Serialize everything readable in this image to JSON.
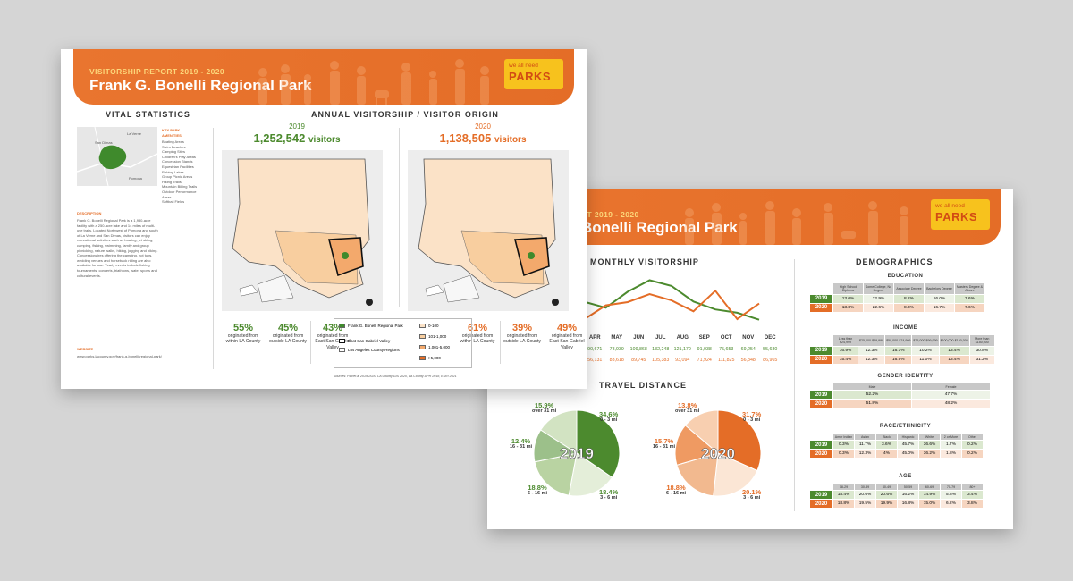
{
  "front": {
    "banner_sub": "VISITORSHIP REPORT 2019 - 2020",
    "banner_title": "Frank G. Bonelli Regional Park",
    "logo_line1": "we all need",
    "logo_line2": "PARKS",
    "vital_heading": "VITAL STATISTICS",
    "annual_heading": "ANNUAL VISITORSHIP / VISITOR ORIGIN",
    "mini_map_labels": [
      "La Verne",
      "San Dimas",
      "Pomona"
    ],
    "amenities_heading": "KEY PARK AMENITIES",
    "amenities": [
      "Boating Areas",
      "Swim Beaches",
      "Camping Sites",
      "Children's Play Areas",
      "Concession Stands",
      "Equestrian Facilities",
      "Fishing Lakes",
      "Group Picnic Areas",
      "Hiking Trails",
      "Mountain Biking Trails",
      "Outdoor Performance Areas",
      "Softball Fields"
    ],
    "description_heading": "DESCRIPTION",
    "description": "Frank G. Bonelli Regional Park is a 1,980-acre facility with a 250-acre lake and 14 miles of multi-use trails. Located Northwest of Pomona and south of La Verne and San Dimas, visitors can enjoy recreational activities such as boating, jet skiing, camping, fishing, swimming, family and group picnicking, nature walks, hiking, jogging and biking. Concessionaires offering the camping, hot tubs, wedding venues and horseback riding are also available for use. Yearly events include fishing tournaments, concerts, triathlons, water sports and cultural events.",
    "website_heading": "WEBSITE",
    "website": "www.parks.lacounty.gov/frank-g-bonelli-regional-park/",
    "y2019": "2019",
    "y2020": "2020",
    "visitors_2019": "1,252,542",
    "visitors_2020": "1,138,505",
    "visitors_word": "visitors",
    "stats_2019": [
      {
        "pct": "55%",
        "text": "originated from within LA County"
      },
      {
        "pct": "45%",
        "text": "originated from outside LA County"
      },
      {
        "pct": "43%",
        "text": "originated from East San Gabriel Valley"
      }
    ],
    "stats_2020": [
      {
        "pct": "61%",
        "text": "originated from within LA County"
      },
      {
        "pct": "39%",
        "text": "originated from outside LA County"
      },
      {
        "pct": "49%",
        "text": "originated from East San Gabriel Valley"
      }
    ],
    "legend": {
      "park": "Frank G. Bonelli Regional Park",
      "esgv": "East San Gabriel Valley",
      "lac": "Los Angeles County Regions",
      "bins": [
        "0-100",
        "101-1,000",
        "1,001-5,000",
        ">5,000"
      ]
    },
    "sources": "Sources: Placer.ai 2019-2020, LA County GIS 2020, LA County DPR 2018, ESRI 2021",
    "colors": {
      "orange": "#e46d27",
      "green": "#4c8a2e"
    }
  },
  "back": {
    "banner_sub": "RT 2019 - 2020",
    "banner_title": "Bonelli Regional Park",
    "monthly_heading": "MONTHLY VISITORSHIP",
    "months": [
      "APR",
      "MAY",
      "JUN",
      "JUL",
      "AUG",
      "SEP",
      "OCT",
      "NOV",
      "DEC"
    ],
    "vals_2019": [
      "90,671",
      "78,939",
      "109,868",
      "132,248",
      "121,170",
      "91,038",
      "75,653",
      "69,254",
      "55,680"
    ],
    "vals_2020": [
      "56,131",
      "83,618",
      "89,745",
      "105,383",
      "93,094",
      "71,924",
      "111,825",
      "56,848",
      "86,965"
    ],
    "travel_heading": "TRAVEL DISTANCE",
    "pie_2019": {
      "label": "2019",
      "slices": [
        {
          "pct": "34.6%",
          "range": "0 - 3 mi"
        },
        {
          "pct": "18.4%",
          "range": "3 - 6 mi"
        },
        {
          "pct": "18.8%",
          "range": "6 - 16 mi"
        },
        {
          "pct": "12.4%",
          "range": "16 - 31 mi"
        },
        {
          "pct": "15.9%",
          "range": "over 31 mi"
        }
      ]
    },
    "pie_2020": {
      "label": "2020",
      "slices": [
        {
          "pct": "31.7%",
          "range": "0 - 3 mi"
        },
        {
          "pct": "20.1%",
          "range": "3 - 6 mi"
        },
        {
          "pct": "18.8%",
          "range": "6 - 16 mi"
        },
        {
          "pct": "15.7%",
          "range": "16 - 31 mi"
        },
        {
          "pct": "13.8%",
          "range": "over 31 mi"
        }
      ]
    },
    "demographics_heading": "DEMOGRAPHICS",
    "education": {
      "heading": "EDUCATION",
      "cols": [
        "High School Diploma",
        "Some College, No Degree",
        "Associate Degree",
        "Bachelors Degree",
        "Masters Degree & Above"
      ],
      "r2019": [
        "13.0%",
        "22.9%",
        "8.2%",
        "16.0%",
        "7.6%"
      ],
      "r2020": [
        "13.8%",
        "22.6%",
        "8.3%",
        "16.7%",
        "7.6%"
      ]
    },
    "income": {
      "heading": "INCOME",
      "cols": [
        "Less than $24,999",
        "$25,000-$49,999",
        "$50,000-$74,999",
        "$75,000-$99,999",
        "$100,000-$150,000",
        "More than $150,000"
      ],
      "r2019": [
        "16.9%",
        "12.3%",
        "16.1%",
        "10.2%",
        "13.4%",
        "30.8%"
      ],
      "r2020": [
        "15.4%",
        "12.3%",
        "16.5%",
        "11.0%",
        "13.4%",
        "31.2%"
      ]
    },
    "gender": {
      "heading": "GENDER IDENTITY",
      "cols": [
        "Male",
        "Female"
      ],
      "r2019": [
        "52.2%",
        "47.7%"
      ],
      "r2020": [
        "51.8%",
        "48.2%"
      ]
    },
    "race": {
      "heading": "RACE/ETHNICITY",
      "cols": [
        "Amer Indian",
        "Asian",
        "Black",
        "Hispanic",
        "White",
        "2 or More",
        "Other"
      ],
      "r2019": [
        "0.3%",
        "11.7%",
        "3.6%",
        "45.7%",
        "36.6%",
        "1.7%",
        "0.2%"
      ],
      "r2020": [
        "0.3%",
        "12.3%",
        "4%",
        "45.0%",
        "36.2%",
        "1.8%",
        "0.2%"
      ]
    },
    "age": {
      "heading": "AGE",
      "cols": [
        "18-29",
        "30-39",
        "40-49",
        "50-59",
        "60-69",
        "70-79",
        "80+"
      ],
      "r2019": [
        "18.4%",
        "20.6%",
        "20.6%",
        "16.2%",
        "14.9%",
        "5.8%",
        "3.4%"
      ],
      "r2020": [
        "18.8%",
        "19.5%",
        "19.9%",
        "16.8%",
        "15.0%",
        "6.2%",
        "3.8%"
      ]
    },
    "years": [
      "2019",
      "2020"
    ]
  },
  "chart_data": [
    {
      "type": "line",
      "title": "MONTHLY VISITORSHIP",
      "categories": [
        "APR",
        "MAY",
        "JUN",
        "JUL",
        "AUG",
        "SEP",
        "OCT",
        "NOV",
        "DEC"
      ],
      "series": [
        {
          "name": "2019",
          "values": [
            90671,
            78939,
            109868,
            132248,
            121170,
            91038,
            75653,
            69254,
            55680
          ]
        },
        {
          "name": "2020",
          "values": [
            56131,
            83618,
            89745,
            105383,
            93094,
            71924,
            111825,
            56848,
            86965
          ]
        }
      ]
    },
    {
      "type": "pie",
      "title": "2019",
      "categories": [
        "0 - 3 mi",
        "3 - 6 mi",
        "6 - 16 mi",
        "16 - 31 mi",
        "over 31 mi"
      ],
      "values": [
        34.6,
        18.4,
        18.8,
        12.4,
        15.9
      ]
    },
    {
      "type": "pie",
      "title": "2020",
      "categories": [
        "0 - 3 mi",
        "3 - 6 mi",
        "6 - 16 mi",
        "16 - 31 mi",
        "over 31 mi"
      ],
      "values": [
        31.7,
        20.1,
        18.8,
        15.7,
        13.8
      ]
    }
  ]
}
